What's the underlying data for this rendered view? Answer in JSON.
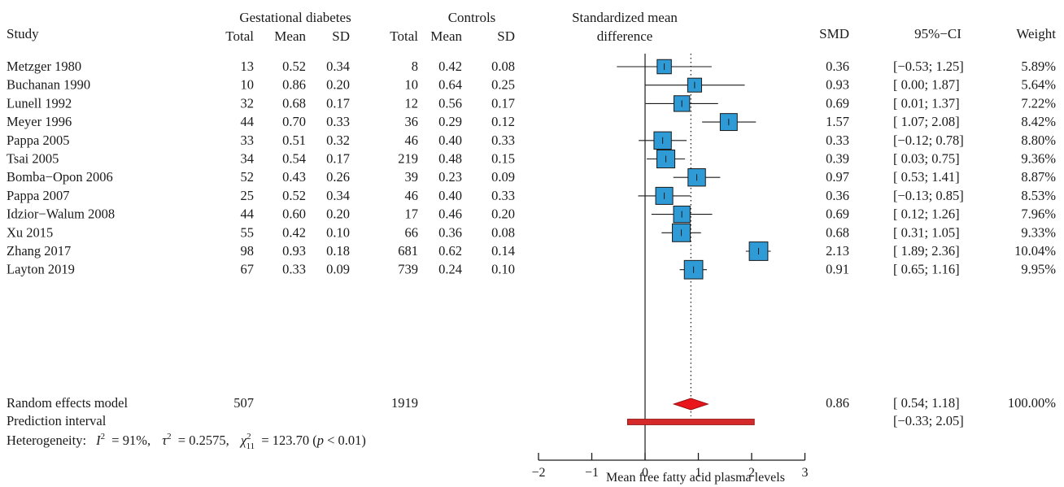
{
  "headers": {
    "study": "Study",
    "group_gd": "Gestational diabetes",
    "group_ctrl": "Controls",
    "plot_title_line1": "Standardized mean",
    "plot_title_line2": "difference",
    "smd": "SMD",
    "ci": "95%−CI",
    "weight": "Weight",
    "total": "Total",
    "mean": "Mean",
    "sd": "SD"
  },
  "rows": [
    {
      "study": "Metzger 1980",
      "gd_total": "13",
      "gd_mean": "0.52",
      "gd_sd": "0.34",
      "c_total": "8",
      "c_mean": "0.42",
      "c_sd": "0.08",
      "smd": "0.36",
      "ci": "[−0.53; 1.25]",
      "weight": "5.89%"
    },
    {
      "study": "Buchanan 1990",
      "gd_total": "10",
      "gd_mean": "0.86",
      "gd_sd": "0.20",
      "c_total": "10",
      "c_mean": "0.64",
      "c_sd": "0.25",
      "smd": "0.93",
      "ci": "[ 0.00; 1.87]",
      "weight": "5.64%"
    },
    {
      "study": "Lunell 1992",
      "gd_total": "32",
      "gd_mean": "0.68",
      "gd_sd": "0.17",
      "c_total": "12",
      "c_mean": "0.56",
      "c_sd": "0.17",
      "smd": "0.69",
      "ci": "[ 0.01; 1.37]",
      "weight": "7.22%"
    },
    {
      "study": "Meyer 1996",
      "gd_total": "44",
      "gd_mean": "0.70",
      "gd_sd": "0.33",
      "c_total": "36",
      "c_mean": "0.29",
      "c_sd": "0.12",
      "smd": "1.57",
      "ci": "[ 1.07; 2.08]",
      "weight": "8.42%"
    },
    {
      "study": "Pappa 2005",
      "gd_total": "33",
      "gd_mean": "0.51",
      "gd_sd": "0.32",
      "c_total": "46",
      "c_mean": "0.40",
      "c_sd": "0.33",
      "smd": "0.33",
      "ci": "[−0.12; 0.78]",
      "weight": "8.80%"
    },
    {
      "study": "Tsai 2005",
      "gd_total": "34",
      "gd_mean": "0.54",
      "gd_sd": "0.17",
      "c_total": "219",
      "c_mean": "0.48",
      "c_sd": "0.15",
      "smd": "0.39",
      "ci": "[ 0.03; 0.75]",
      "weight": "9.36%"
    },
    {
      "study": "Bomba−Opon 2006",
      "gd_total": "52",
      "gd_mean": "0.43",
      "gd_sd": "0.26",
      "c_total": "39",
      "c_mean": "0.23",
      "c_sd": "0.09",
      "smd": "0.97",
      "ci": "[ 0.53; 1.41]",
      "weight": "8.87%"
    },
    {
      "study": "Pappa 2007",
      "gd_total": "25",
      "gd_mean": "0.52",
      "gd_sd": "0.34",
      "c_total": "46",
      "c_mean": "0.40",
      "c_sd": "0.33",
      "smd": "0.36",
      "ci": "[−0.13; 0.85]",
      "weight": "8.53%"
    },
    {
      "study": "Idzior−Walum  2008",
      "gd_total": "44",
      "gd_mean": "0.60",
      "gd_sd": "0.20",
      "c_total": "17",
      "c_mean": "0.46",
      "c_sd": "0.20",
      "smd": "0.69",
      "ci": "[ 0.12; 1.26]",
      "weight": "7.96%"
    },
    {
      "study": "Xu 2015",
      "gd_total": "55",
      "gd_mean": "0.42",
      "gd_sd": "0.10",
      "c_total": "66",
      "c_mean": "0.36",
      "c_sd": "0.08",
      "smd": "0.68",
      "ci": "[ 0.31; 1.05]",
      "weight": "9.33%"
    },
    {
      "study": "Zhang 2017",
      "gd_total": "98",
      "gd_mean": "0.93",
      "gd_sd": "0.18",
      "c_total": "681",
      "c_mean": "0.62",
      "c_sd": "0.14",
      "smd": "2.13",
      "ci": "[ 1.89; 2.36]",
      "weight": "10.04%"
    },
    {
      "study": "Layton 2019",
      "gd_total": "67",
      "gd_mean": "0.33",
      "gd_sd": "0.09",
      "c_total": "739",
      "c_mean": "0.24",
      "c_sd": "0.10",
      "smd": "0.91",
      "ci": "[ 0.65; 1.16]",
      "weight": "9.95%"
    }
  ],
  "summary": {
    "label": "Random effects model",
    "gd_total": "507",
    "c_total": "1919",
    "smd": "0.86",
    "ci": "[ 0.54; 1.18]",
    "weight": "100.00%",
    "estimate": 0.86,
    "lower": 0.54,
    "upper": 1.18
  },
  "prediction": {
    "label": "Prediction interval",
    "ci": "[−0.33; 2.05]",
    "lower": -0.33,
    "upper": 2.05
  },
  "heterogeneity": {
    "prefix": "Heterogeneity:",
    "i2_value": "= 91%,",
    "tau2_value": "= 0.2575,",
    "chi2_df": "11",
    "chi2_value": "= 123.70 (",
    "p_value": " < 0.01)"
  },
  "colors": {
    "square": "#2e9bd6",
    "diamond": "#e8161c",
    "prediction": "#d42a2a",
    "ink": "#1a1a1a"
  },
  "chart_data": {
    "type": "forest",
    "xlabel": "Mean free fatty acid plasma levels",
    "xlim": [
      -2,
      3
    ],
    "xticks": [
      -2,
      -1,
      0,
      1,
      2,
      3
    ],
    "reference_line": 0,
    "summary_line": 0.86,
    "studies": [
      "Metzger 1980",
      "Buchanan 1990",
      "Lunell 1992",
      "Meyer 1996",
      "Pappa 2005",
      "Tsai 2005",
      "Bomba−Opon 2006",
      "Pappa 2007",
      "Idzior−Walum  2008",
      "Xu 2015",
      "Zhang 2017",
      "Layton 2019"
    ],
    "smd": [
      0.36,
      0.93,
      0.69,
      1.57,
      0.33,
      0.39,
      0.97,
      0.36,
      0.69,
      0.68,
      2.13,
      0.91
    ],
    "lower": [
      -0.53,
      0.0,
      0.01,
      1.07,
      -0.12,
      0.03,
      0.53,
      -0.13,
      0.12,
      0.31,
      1.89,
      0.65
    ],
    "upper": [
      1.25,
      1.87,
      1.37,
      2.08,
      0.78,
      0.75,
      1.41,
      0.85,
      1.26,
      1.05,
      2.36,
      1.16
    ],
    "weight": [
      5.89,
      5.64,
      7.22,
      8.42,
      8.8,
      9.36,
      8.87,
      8.53,
      7.96,
      9.33,
      10.04,
      9.95
    ]
  }
}
